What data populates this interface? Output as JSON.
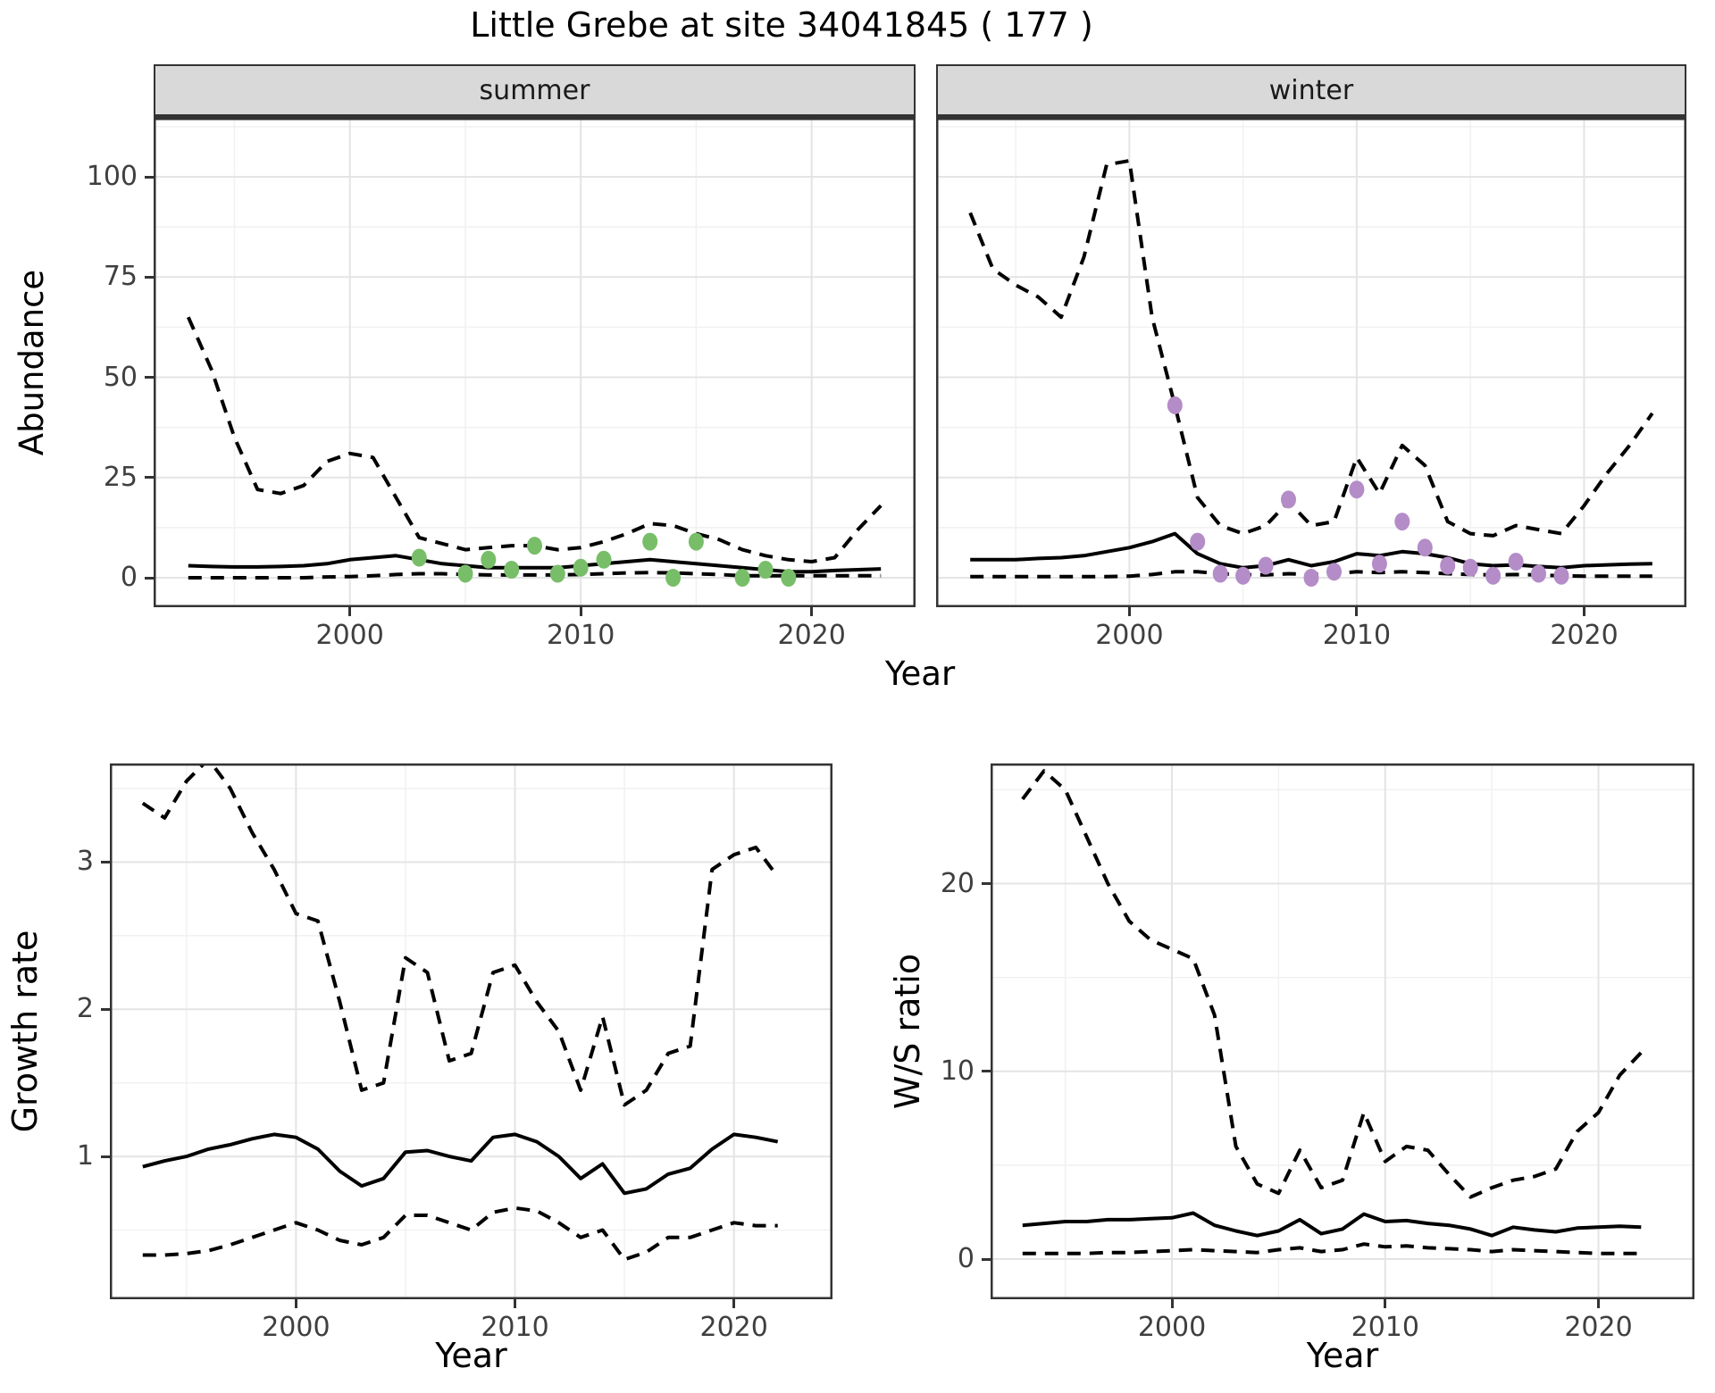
{
  "title": "Little Grebe at site 34041845 ( 177 )",
  "facets": {
    "summer": "summer",
    "winter": "winter"
  },
  "axis_labels": {
    "abundance": "Abundance",
    "year": "Year",
    "growth_rate": "Growth rate",
    "ws_ratio": "W/S ratio"
  },
  "colors": {
    "line": "#000000",
    "observed_summer": "#78be69",
    "observed_winter": "#b48cc8",
    "strip_bg": "#d9d9d9",
    "panel_border": "#333333",
    "grid_major": "#e4e4e4",
    "grid_minor": "#f1f1f1",
    "tick_text": "#3f3f3f"
  },
  "chart_data": [
    {
      "id": "summer",
      "type": "line",
      "facet": "summer",
      "xlabel": "Year",
      "ylabel": "Abundance",
      "xlim": [
        1991.5,
        2024.5
      ],
      "ylim": [
        -7.35,
        114.7
      ],
      "x_ticks": [
        2000,
        2010,
        2020
      ],
      "y_ticks": [
        0,
        25,
        50,
        75,
        100
      ],
      "show_y_tick_labels": true,
      "grid": true,
      "legend": "none",
      "years": [
        1993,
        1994,
        1995,
        1996,
        1997,
        1998,
        1999,
        2000,
        2001,
        2002,
        2003,
        2004,
        2005,
        2006,
        2007,
        2008,
        2009,
        2010,
        2011,
        2012,
        2013,
        2014,
        2015,
        2016,
        2017,
        2018,
        2019,
        2020,
        2021,
        2022,
        2023
      ],
      "series": [
        {
          "name": "upper-ci",
          "line": "dashed",
          "values": [
            65,
            52,
            35,
            22,
            21,
            23,
            29,
            31,
            30,
            20,
            10,
            8.5,
            7,
            7.5,
            8,
            8,
            7,
            7.5,
            9,
            11,
            13.5,
            13,
            11,
            9.5,
            7,
            5.5,
            4.5,
            4,
            5,
            12,
            18
          ]
        },
        {
          "name": "mean",
          "line": "solid",
          "values": [
            3,
            2.8,
            2.7,
            2.7,
            2.8,
            3,
            3.5,
            4.5,
            5,
            5.5,
            4.5,
            3.5,
            3,
            2.5,
            2.5,
            2.5,
            2.5,
            3,
            3.5,
            4,
            4.5,
            4,
            3.5,
            3,
            2.5,
            2,
            1.5,
            1.5,
            1.8,
            2,
            2.2
          ]
        },
        {
          "name": "lower-ci",
          "line": "dashed",
          "values": [
            0,
            0,
            0,
            0,
            0,
            0,
            0.2,
            0.3,
            0.5,
            0.8,
            1,
            1,
            0.8,
            0.7,
            0.7,
            0.7,
            0.7,
            0.8,
            1,
            1.2,
            1.3,
            1.2,
            1,
            0.8,
            0.5,
            0.5,
            0.5,
            0.5,
            0.5,
            0.5,
            0.5
          ]
        }
      ],
      "points": {
        "name": "observed-counts",
        "color": "#78be69",
        "x": [
          2003,
          2005,
          2006,
          2007,
          2008,
          2009,
          2010,
          2011,
          2013,
          2014,
          2015,
          2017,
          2018,
          2019
        ],
        "y": [
          5,
          1,
          4.5,
          2,
          8,
          1,
          2.5,
          4.5,
          9,
          0,
          9,
          0,
          2,
          0
        ]
      }
    },
    {
      "id": "winter",
      "type": "line",
      "facet": "winter",
      "xlabel": "Year",
      "ylabel": "Abundance",
      "xlim": [
        1991.5,
        2024.5
      ],
      "ylim": [
        -7.35,
        114.7
      ],
      "x_ticks": [
        2000,
        2010,
        2020
      ],
      "y_ticks": [
        0,
        25,
        50,
        75,
        100
      ],
      "show_y_tick_labels": false,
      "grid": true,
      "legend": "none",
      "years": [
        1993,
        1994,
        1995,
        1996,
        1997,
        1998,
        1999,
        2000,
        2001,
        2002,
        2003,
        2004,
        2005,
        2006,
        2007,
        2008,
        2009,
        2010,
        2011,
        2012,
        2013,
        2014,
        2015,
        2016,
        2017,
        2018,
        2019,
        2020,
        2021,
        2022,
        2023
      ],
      "series": [
        {
          "name": "upper-ci",
          "line": "dashed",
          "values": [
            91,
            77,
            73,
            70,
            65,
            80,
            103,
            104,
            65,
            43,
            20,
            13,
            11,
            13,
            19,
            13,
            14,
            30,
            21,
            33,
            28,
            14,
            11,
            10.5,
            13,
            12,
            11,
            18,
            26,
            33,
            41
          ]
        },
        {
          "name": "mean",
          "line": "solid",
          "values": [
            4.5,
            4.5,
            4.5,
            4.8,
            5,
            5.5,
            6.5,
            7.5,
            9,
            11,
            6,
            3.5,
            2.5,
            3,
            4.5,
            3,
            4,
            6,
            5.5,
            6.5,
            6,
            5,
            3.5,
            3,
            3.2,
            2.8,
            2.5,
            3,
            3.2,
            3.4,
            3.5
          ]
        },
        {
          "name": "lower-ci",
          "line": "dashed",
          "values": [
            0.3,
            0.3,
            0.3,
            0.3,
            0.3,
            0.3,
            0.3,
            0.4,
            0.8,
            1.5,
            1.5,
            1,
            0.8,
            0.7,
            1,
            0.8,
            1,
            1.5,
            1.3,
            1.5,
            1.3,
            1,
            0.8,
            0.7,
            0.8,
            0.7,
            0.5,
            0.4,
            0.4,
            0.4,
            0.4
          ]
        }
      ],
      "points": {
        "name": "observed-counts",
        "color": "#b48cc8",
        "x": [
          2002,
          2003,
          2004,
          2005,
          2006,
          2007,
          2008,
          2009,
          2010,
          2011,
          2012,
          2013,
          2014,
          2015,
          2016,
          2017,
          2018,
          2019
        ],
        "y": [
          43,
          9,
          1,
          0.5,
          3,
          19.5,
          0,
          1.5,
          22,
          3.5,
          14,
          7.5,
          3,
          2.5,
          0.5,
          4,
          1,
          0.5
        ]
      }
    },
    {
      "id": "growth",
      "type": "line",
      "facet": "",
      "xlabel": "Year",
      "ylabel": "Growth rate",
      "xlim": [
        1991.5,
        2024.5
      ],
      "ylim": [
        0.03,
        3.67
      ],
      "x_ticks": [
        2000,
        2010,
        2020
      ],
      "y_ticks": [
        1,
        2,
        3
      ],
      "show_y_tick_labels": true,
      "grid": true,
      "legend": "none",
      "years": [
        1993,
        1994,
        1995,
        1996,
        1997,
        1998,
        1999,
        2000,
        2001,
        2002,
        2003,
        2004,
        2005,
        2006,
        2007,
        2008,
        2009,
        2010,
        2011,
        2012,
        2013,
        2014,
        2015,
        2016,
        2017,
        2018,
        2019,
        2020,
        2021,
        2022
      ],
      "series": [
        {
          "name": "upper-ci",
          "line": "dashed",
          "values": [
            3.4,
            3.3,
            3.55,
            3.7,
            3.5,
            3.2,
            2.95,
            2.65,
            2.6,
            2.05,
            1.45,
            1.5,
            2.35,
            2.25,
            1.65,
            1.7,
            2.25,
            2.3,
            2.05,
            1.85,
            1.45,
            1.95,
            1.35,
            1.45,
            1.7,
            1.75,
            2.95,
            3.05,
            3.1,
            2.9
          ]
        },
        {
          "name": "mean",
          "line": "solid",
          "values": [
            0.93,
            0.97,
            1.0,
            1.05,
            1.08,
            1.12,
            1.15,
            1.13,
            1.05,
            0.9,
            0.8,
            0.85,
            1.03,
            1.04,
            1.0,
            0.97,
            1.13,
            1.15,
            1.1,
            1.0,
            0.85,
            0.95,
            0.75,
            0.78,
            0.88,
            0.92,
            1.05,
            1.15,
            1.13,
            1.1
          ]
        },
        {
          "name": "lower-ci",
          "line": "dashed",
          "values": [
            0.33,
            0.33,
            0.34,
            0.36,
            0.4,
            0.45,
            0.5,
            0.55,
            0.5,
            0.43,
            0.4,
            0.45,
            0.6,
            0.6,
            0.55,
            0.5,
            0.62,
            0.65,
            0.63,
            0.55,
            0.45,
            0.5,
            0.3,
            0.35,
            0.45,
            0.45,
            0.5,
            0.55,
            0.53,
            0.53
          ]
        }
      ]
    },
    {
      "id": "ws",
      "type": "line",
      "facet": "",
      "xlabel": "Year",
      "ylabel": "W/S ratio",
      "xlim": [
        1991.5,
        2024.5
      ],
      "ylim": [
        -2.14,
        26.4
      ],
      "x_ticks": [
        2000,
        2010,
        2020
      ],
      "y_ticks": [
        0,
        10,
        20
      ],
      "show_y_tick_labels": true,
      "grid": true,
      "legend": "none",
      "years": [
        1993,
        1994,
        1995,
        1996,
        1997,
        1998,
        1999,
        2000,
        2001,
        2002,
        2003,
        2004,
        2005,
        2006,
        2007,
        2008,
        2009,
        2010,
        2011,
        2012,
        2013,
        2014,
        2015,
        2016,
        2017,
        2018,
        2019,
        2020,
        2021,
        2022
      ],
      "series": [
        {
          "name": "upper-ci",
          "line": "dashed",
          "values": [
            24.5,
            26,
            25,
            22.5,
            20,
            18,
            17,
            16.5,
            16,
            13,
            6,
            4,
            3.5,
            5.8,
            3.8,
            4.2,
            7.8,
            5.2,
            6,
            5.8,
            4.5,
            3.3,
            3.8,
            4.2,
            4.4,
            4.8,
            6.8,
            7.8,
            9.8,
            11
          ]
        },
        {
          "name": "mean",
          "line": "solid",
          "values": [
            1.8,
            1.9,
            2.0,
            2.0,
            2.1,
            2.1,
            2.15,
            2.2,
            2.45,
            1.8,
            1.5,
            1.25,
            1.5,
            2.1,
            1.35,
            1.6,
            2.4,
            2.0,
            2.05,
            1.9,
            1.8,
            1.6,
            1.25,
            1.7,
            1.55,
            1.45,
            1.65,
            1.7,
            1.75,
            1.7
          ]
        },
        {
          "name": "lower-ci",
          "line": "dashed",
          "values": [
            0.3,
            0.3,
            0.3,
            0.3,
            0.35,
            0.35,
            0.4,
            0.45,
            0.5,
            0.45,
            0.4,
            0.35,
            0.5,
            0.6,
            0.4,
            0.5,
            0.8,
            0.65,
            0.7,
            0.6,
            0.55,
            0.5,
            0.4,
            0.5,
            0.45,
            0.4,
            0.35,
            0.3,
            0.3,
            0.3
          ]
        }
      ]
    }
  ]
}
